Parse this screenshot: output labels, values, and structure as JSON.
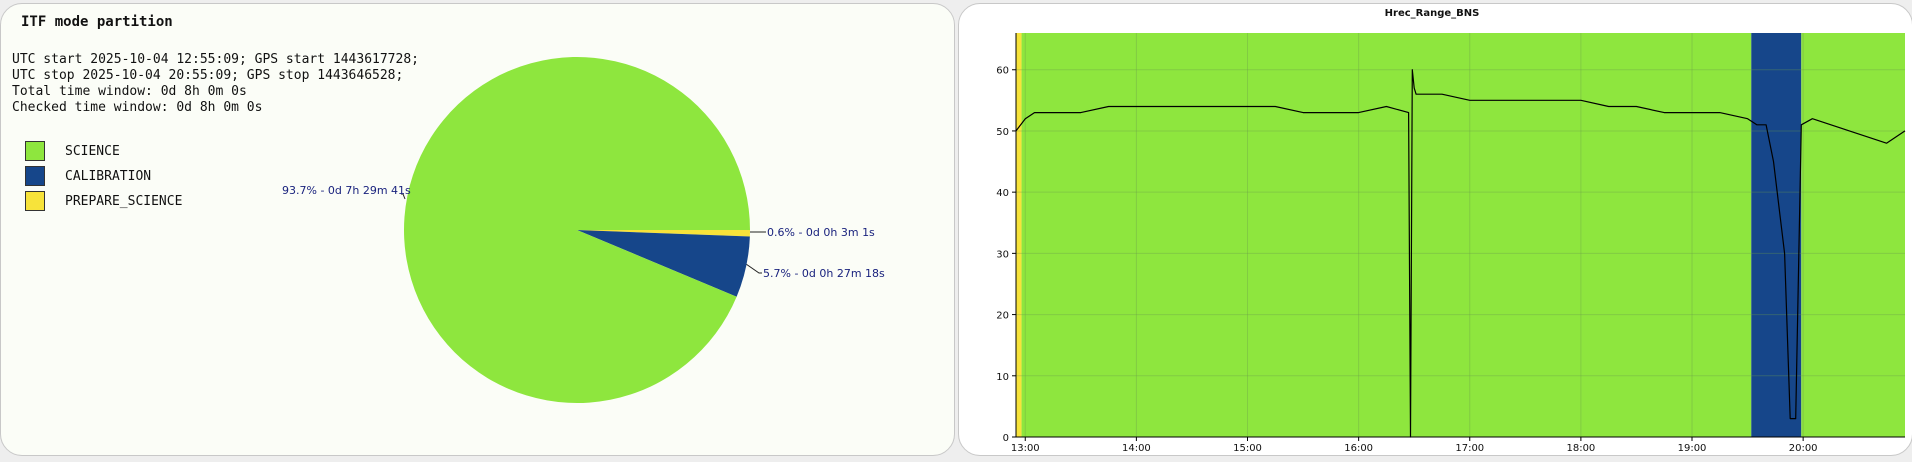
{
  "left": {
    "title": "ITF mode partition",
    "info": [
      "UTC start 2025-10-04 12:55:09; GPS start 1443617728;",
      "UTC stop 2025-10-04 20:55:09; GPS stop 1443646528;",
      "Total time window: 0d 8h 0m 0s",
      "Checked time window: 0d 8h 0m 0s"
    ]
  },
  "colors": {
    "science": "#8ee63e",
    "calibration": "#16468a",
    "prepare": "#f7e33a",
    "trace": "#000000"
  },
  "chart_data": [
    {
      "type": "pie",
      "title": "ITF mode partition",
      "slices": [
        {
          "name": "SCIENCE",
          "percent": 93.7,
          "label": "93.7% - 0d 7h 29m 41s",
          "color": "#8ee63e"
        },
        {
          "name": "CALIBRATION",
          "percent": 5.7,
          "label": "5.7% - 0d 0h 27m 18s",
          "color": "#16468a"
        },
        {
          "name": "PREPARE_SCIENCE",
          "percent": 0.6,
          "label": "0.6% - 0d 0h 3m 1s",
          "color": "#f7e33a"
        }
      ]
    },
    {
      "type": "line",
      "title": "Hrec_Range_BNS",
      "xlabel": "",
      "ylabel": "",
      "xlim": [
        "12:55",
        "20:55"
      ],
      "ylim": [
        0,
        66
      ],
      "xticks": [
        "13:00",
        "14:00",
        "15:00",
        "16:00",
        "17:00",
        "18:00",
        "19:00",
        "20:00"
      ],
      "yticks": [
        0,
        10,
        20,
        30,
        40,
        50,
        60
      ],
      "grid": true,
      "background_bands": [
        {
          "mode": "PREPARE_SCIENCE",
          "from": "12:55",
          "to": "12:58"
        },
        {
          "mode": "SCIENCE",
          "from": "12:58",
          "to": "19:32"
        },
        {
          "mode": "CALIBRATION",
          "from": "19:32",
          "to": "19:59"
        },
        {
          "mode": "SCIENCE",
          "from": "19:59",
          "to": "20:55"
        }
      ],
      "series": [
        {
          "x": [
            "12:55",
            "13:00",
            "13:05",
            "13:15",
            "13:30",
            "13:45",
            "14:00",
            "14:15",
            "14:30",
            "14:45",
            "15:00",
            "15:15",
            "15:30",
            "15:45",
            "16:00",
            "16:15",
            "16:27",
            "16:28",
            "16:29",
            "16:30",
            "16:31",
            "16:45",
            "17:00",
            "17:15",
            "17:30",
            "17:45",
            "18:00",
            "18:15",
            "18:30",
            "18:45",
            "19:00",
            "19:15",
            "19:30",
            "19:35",
            "19:40",
            "19:44",
            "19:46",
            "19:48",
            "19:50",
            "19:53",
            "19:56",
            "19:59",
            "20:05",
            "20:15",
            "20:25",
            "20:35",
            "20:45",
            "20:55"
          ],
          "y": [
            50,
            52,
            53,
            53,
            53,
            54,
            54,
            54,
            54,
            54,
            54,
            54,
            53,
            53,
            53,
            54,
            53,
            0,
            60,
            57,
            56,
            56,
            55,
            55,
            55,
            55,
            55,
            54,
            54,
            53,
            53,
            53,
            52,
            51,
            51,
            45,
            40,
            35,
            30,
            3,
            3,
            51,
            52,
            51,
            50,
            49,
            48,
            50
          ]
        }
      ]
    }
  ]
}
